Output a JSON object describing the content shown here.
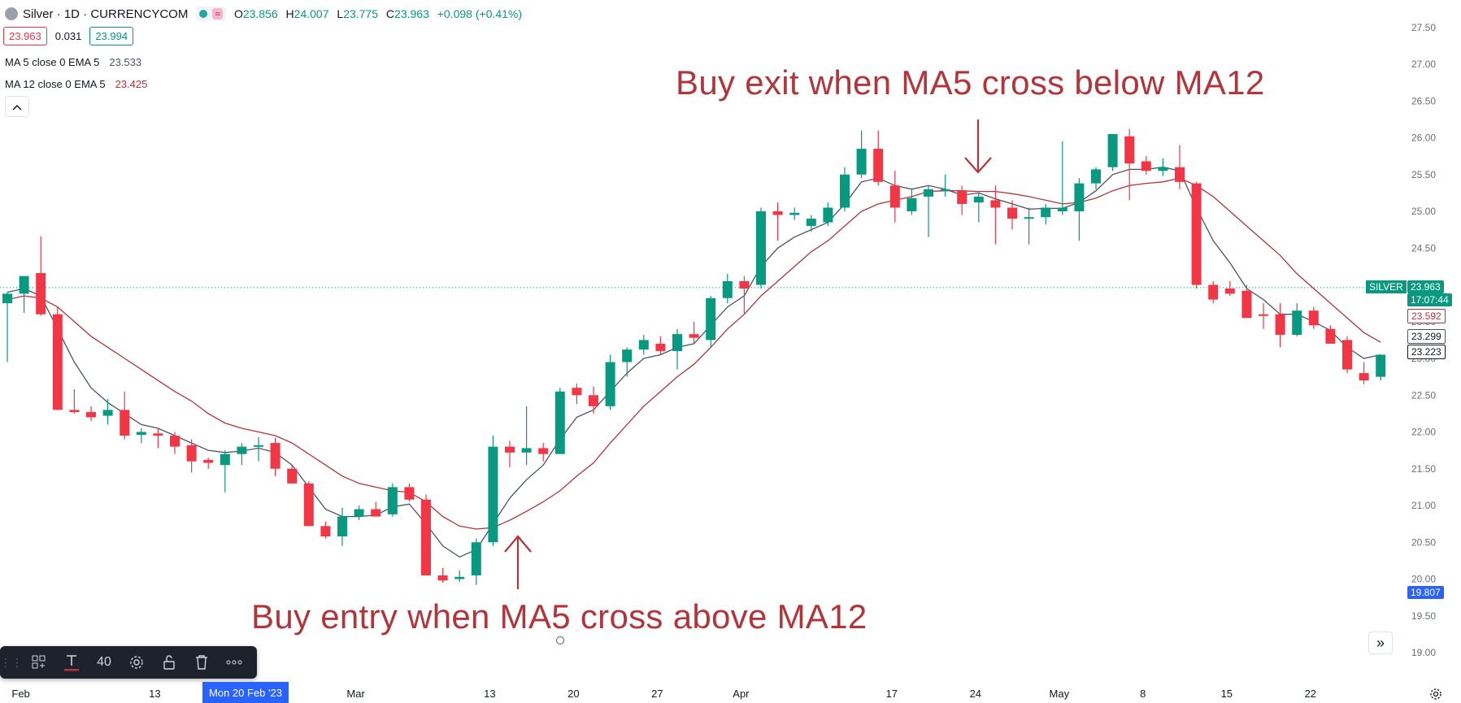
{
  "header": {
    "title": "Silver · 1D · CURRENCYCOM",
    "open_label": "O",
    "open": "23.856",
    "high_label": "H",
    "high": "24.007",
    "low_label": "L",
    "low": "23.775",
    "close_label": "C",
    "close": "23.963",
    "change": "+0.098 (+0.41%)"
  },
  "quote": {
    "sell": "23.963",
    "spread": "0.031",
    "buy": "23.994"
  },
  "indicators": {
    "ma5": {
      "label": "MA 5 close 0 EMA 5",
      "value": "23.533"
    },
    "ma12": {
      "label": "MA 12 close 0 EMA 5",
      "value": "23.425"
    }
  },
  "collapse_icon": "chevron-up-icon",
  "annotations": {
    "exit": "Buy exit when MA5 cross below MA12",
    "entry": "Buy entry when MA5 cross above MA12"
  },
  "price_axis_labels": {
    "symbol": "SILVER",
    "last_price": "23.963",
    "countdown": "17:07:44",
    "ma_a": "23.592",
    "ma_b": "23.299",
    "ma_c": "23.223",
    "marker": "19.807"
  },
  "toolbar": {
    "font_size": "40"
  },
  "highlighted_date": "Mon 20 Feb '23",
  "colors": {
    "up": "#089981",
    "down": "#f23645",
    "ma5": "#4a5466",
    "ma12": "#b2353c",
    "annotation": "#b2353c"
  },
  "chart_data": {
    "type": "candlestick",
    "title": "Silver · 1D · CURRENCYCOM",
    "ylim": [
      18.9,
      27.6
    ],
    "y_ticks": [
      "19.00",
      "19.50",
      "20.00",
      "20.50",
      "21.00",
      "21.50",
      "22.00",
      "22.50",
      "23.00",
      "23.50",
      "24.00",
      "24.50",
      "25.00",
      "25.50",
      "26.00",
      "26.50",
      "27.00",
      "27.50"
    ],
    "x_ticks": [
      {
        "i": 1,
        "label": "Feb"
      },
      {
        "i": 9,
        "label": "13"
      },
      {
        "i": 13,
        "label": "Mon 20 Feb '23"
      },
      {
        "i": 21,
        "label": "Mar"
      },
      {
        "i": 29,
        "label": "13"
      },
      {
        "i": 34,
        "label": "20"
      },
      {
        "i": 39,
        "label": "27"
      },
      {
        "i": 44,
        "label": "Apr"
      },
      {
        "i": 53,
        "label": "17"
      },
      {
        "i": 58,
        "label": "24"
      },
      {
        "i": 63,
        "label": "May"
      },
      {
        "i": 68,
        "label": "8"
      },
      {
        "i": 73,
        "label": "15"
      },
      {
        "i": 78,
        "label": "22"
      }
    ],
    "candles": [
      {
        "o": 23.75,
        "h": 23.9,
        "l": 22.95,
        "c": 23.88
      },
      {
        "o": 23.88,
        "h": 24.08,
        "l": 23.62,
        "c": 24.12
      },
      {
        "o": 24.16,
        "h": 24.66,
        "l": 23.58,
        "c": 23.6
      },
      {
        "o": 23.6,
        "h": 23.7,
        "l": 22.3,
        "c": 22.3
      },
      {
        "o": 22.3,
        "h": 22.58,
        "l": 22.25,
        "c": 22.27
      },
      {
        "o": 22.27,
        "h": 22.35,
        "l": 22.15,
        "c": 22.2
      },
      {
        "o": 22.22,
        "h": 22.45,
        "l": 22.1,
        "c": 22.3
      },
      {
        "o": 22.3,
        "h": 22.55,
        "l": 21.9,
        "c": 21.95
      },
      {
        "o": 21.96,
        "h": 22.05,
        "l": 21.85,
        "c": 22.0
      },
      {
        "o": 21.98,
        "h": 22.05,
        "l": 21.78,
        "c": 21.95
      },
      {
        "o": 21.95,
        "h": 22.0,
        "l": 21.7,
        "c": 21.8
      },
      {
        "o": 21.82,
        "h": 21.9,
        "l": 21.45,
        "c": 21.6
      },
      {
        "o": 21.62,
        "h": 21.65,
        "l": 21.5,
        "c": 21.58
      },
      {
        "o": 21.55,
        "h": 21.75,
        "l": 21.18,
        "c": 21.7
      },
      {
        "o": 21.7,
        "h": 21.85,
        "l": 21.55,
        "c": 21.8
      },
      {
        "o": 21.8,
        "h": 21.93,
        "l": 21.6,
        "c": 21.82
      },
      {
        "o": 21.85,
        "h": 21.92,
        "l": 21.4,
        "c": 21.5
      },
      {
        "o": 21.5,
        "h": 21.55,
        "l": 21.3,
        "c": 21.3
      },
      {
        "o": 21.3,
        "h": 21.33,
        "l": 20.72,
        "c": 20.72
      },
      {
        "o": 20.72,
        "h": 20.78,
        "l": 20.55,
        "c": 20.58
      },
      {
        "o": 20.58,
        "h": 20.97,
        "l": 20.45,
        "c": 20.85
      },
      {
        "o": 20.85,
        "h": 21.0,
        "l": 20.8,
        "c": 20.95
      },
      {
        "o": 20.95,
        "h": 21.05,
        "l": 20.9,
        "c": 20.85
      },
      {
        "o": 20.88,
        "h": 21.3,
        "l": 20.85,
        "c": 21.25
      },
      {
        "o": 21.25,
        "h": 21.3,
        "l": 21.05,
        "c": 21.08
      },
      {
        "o": 21.08,
        "h": 21.15,
        "l": 20.05,
        "c": 20.05
      },
      {
        "o": 20.05,
        "h": 20.15,
        "l": 19.95,
        "c": 19.98
      },
      {
        "o": 20.0,
        "h": 20.12,
        "l": 19.96,
        "c": 20.03
      },
      {
        "o": 20.05,
        "h": 20.55,
        "l": 19.92,
        "c": 20.5
      },
      {
        "o": 20.5,
        "h": 21.95,
        "l": 20.45,
        "c": 21.8
      },
      {
        "o": 21.8,
        "h": 21.88,
        "l": 21.52,
        "c": 21.72
      },
      {
        "o": 21.72,
        "h": 22.35,
        "l": 21.55,
        "c": 21.78
      },
      {
        "o": 21.78,
        "h": 21.85,
        "l": 21.6,
        "c": 21.7
      },
      {
        "o": 21.7,
        "h": 22.6,
        "l": 21.7,
        "c": 22.55
      },
      {
        "o": 22.6,
        "h": 22.66,
        "l": 22.38,
        "c": 22.5
      },
      {
        "o": 22.5,
        "h": 22.62,
        "l": 22.25,
        "c": 22.35
      },
      {
        "o": 22.35,
        "h": 23.05,
        "l": 22.3,
        "c": 22.95
      },
      {
        "o": 22.95,
        "h": 23.15,
        "l": 22.75,
        "c": 23.12
      },
      {
        "o": 23.12,
        "h": 23.32,
        "l": 23.05,
        "c": 23.25
      },
      {
        "o": 23.2,
        "h": 23.3,
        "l": 23.05,
        "c": 23.1
      },
      {
        "o": 23.1,
        "h": 23.4,
        "l": 22.85,
        "c": 23.33
      },
      {
        "o": 23.33,
        "h": 23.5,
        "l": 23.2,
        "c": 23.28
      },
      {
        "o": 23.25,
        "h": 23.85,
        "l": 23.15,
        "c": 23.82
      },
      {
        "o": 23.82,
        "h": 24.15,
        "l": 23.75,
        "c": 24.05
      },
      {
        "o": 24.05,
        "h": 24.12,
        "l": 23.6,
        "c": 23.95
      },
      {
        "o": 24.0,
        "h": 25.05,
        "l": 23.95,
        "c": 25.0
      },
      {
        "o": 25.0,
        "h": 25.12,
        "l": 24.6,
        "c": 24.95
      },
      {
        "o": 24.95,
        "h": 25.05,
        "l": 24.88,
        "c": 24.98
      },
      {
        "o": 24.8,
        "h": 24.95,
        "l": 24.72,
        "c": 24.9
      },
      {
        "o": 24.85,
        "h": 25.12,
        "l": 24.8,
        "c": 25.05
      },
      {
        "o": 25.05,
        "h": 25.6,
        "l": 25.0,
        "c": 25.5
      },
      {
        "o": 25.5,
        "h": 26.1,
        "l": 25.45,
        "c": 25.85
      },
      {
        "o": 25.85,
        "h": 26.1,
        "l": 25.35,
        "c": 25.4
      },
      {
        "o": 25.35,
        "h": 25.55,
        "l": 24.85,
        "c": 25.05
      },
      {
        "o": 25.0,
        "h": 25.3,
        "l": 24.95,
        "c": 25.18
      },
      {
        "o": 25.2,
        "h": 25.35,
        "l": 24.65,
        "c": 25.3
      },
      {
        "o": 25.28,
        "h": 25.5,
        "l": 25.2,
        "c": 25.3
      },
      {
        "o": 25.28,
        "h": 25.35,
        "l": 24.95,
        "c": 25.1
      },
      {
        "o": 25.12,
        "h": 25.25,
        "l": 24.85,
        "c": 25.2
      },
      {
        "o": 25.15,
        "h": 25.35,
        "l": 24.55,
        "c": 25.05
      },
      {
        "o": 25.05,
        "h": 25.15,
        "l": 24.75,
        "c": 24.9
      },
      {
        "o": 24.9,
        "h": 25.05,
        "l": 24.55,
        "c": 24.92
      },
      {
        "o": 24.92,
        "h": 25.1,
        "l": 24.82,
        "c": 25.05
      },
      {
        "o": 25.0,
        "h": 25.95,
        "l": 24.95,
        "c": 25.05
      },
      {
        "o": 25.0,
        "h": 25.45,
        "l": 24.6,
        "c": 25.38
      },
      {
        "o": 25.38,
        "h": 25.6,
        "l": 25.3,
        "c": 25.57
      },
      {
        "o": 25.6,
        "h": 26.05,
        "l": 25.55,
        "c": 26.05
      },
      {
        "o": 26.02,
        "h": 26.12,
        "l": 25.15,
        "c": 25.65
      },
      {
        "o": 25.68,
        "h": 25.75,
        "l": 25.5,
        "c": 25.55
      },
      {
        "o": 25.55,
        "h": 25.72,
        "l": 25.48,
        "c": 25.6
      },
      {
        "o": 25.6,
        "h": 25.9,
        "l": 25.3,
        "c": 25.4
      },
      {
        "o": 25.38,
        "h": 25.4,
        "l": 23.95,
        "c": 24.0
      },
      {
        "o": 24.0,
        "h": 24.05,
        "l": 23.75,
        "c": 23.8
      },
      {
        "o": 23.95,
        "h": 24.05,
        "l": 23.85,
        "c": 23.88
      },
      {
        "o": 23.92,
        "h": 24.0,
        "l": 23.55,
        "c": 23.55
      },
      {
        "o": 23.6,
        "h": 23.75,
        "l": 23.4,
        "c": 23.58
      },
      {
        "o": 23.6,
        "h": 23.75,
        "l": 23.15,
        "c": 23.32
      },
      {
        "o": 23.32,
        "h": 23.75,
        "l": 23.3,
        "c": 23.65
      },
      {
        "o": 23.65,
        "h": 23.7,
        "l": 23.4,
        "c": 23.45
      },
      {
        "o": 23.4,
        "h": 23.45,
        "l": 23.2,
        "c": 23.2
      },
      {
        "o": 23.25,
        "h": 23.3,
        "l": 22.8,
        "c": 22.85
      },
      {
        "o": 22.8,
        "h": 22.95,
        "l": 22.65,
        "c": 22.7
      },
      {
        "o": 22.75,
        "h": 23.05,
        "l": 22.7,
        "c": 23.05
      }
    ],
    "series": [
      {
        "name": "MA 5 close 0 EMA 5",
        "values": [
          23.9,
          23.95,
          23.85,
          23.4,
          22.95,
          22.6,
          22.4,
          22.25,
          22.1,
          22.05,
          21.95,
          21.85,
          21.75,
          21.72,
          21.74,
          21.78,
          21.72,
          21.55,
          21.25,
          20.95,
          20.85,
          20.85,
          20.87,
          20.98,
          21.02,
          20.75,
          20.45,
          20.3,
          20.4,
          20.75,
          21.1,
          21.35,
          21.55,
          21.9,
          22.2,
          22.3,
          22.55,
          22.8,
          23.0,
          23.05,
          23.15,
          23.2,
          23.45,
          23.7,
          23.85,
          24.25,
          24.5,
          24.65,
          24.75,
          24.85,
          25.1,
          25.4,
          25.45,
          25.35,
          25.3,
          25.35,
          25.3,
          25.22,
          25.25,
          25.17,
          25.1,
          25.03,
          25.04,
          25.04,
          25.12,
          25.28,
          25.5,
          25.57,
          25.57,
          25.6,
          25.55,
          25.05,
          24.6,
          24.3,
          23.95,
          23.8,
          23.6,
          23.6,
          23.5,
          23.38,
          23.15,
          23.0,
          23.05
        ]
      },
      {
        "name": "MA 12 close 0 EMA 5",
        "values": [
          23.8,
          23.85,
          23.82,
          23.7,
          23.5,
          23.3,
          23.15,
          23.0,
          22.85,
          22.7,
          22.55,
          22.42,
          22.25,
          22.12,
          22.05,
          22.0,
          21.95,
          21.85,
          21.7,
          21.55,
          21.4,
          21.3,
          21.25,
          21.2,
          21.18,
          21.05,
          20.85,
          20.72,
          20.68,
          20.7,
          20.8,
          20.92,
          21.05,
          21.2,
          21.4,
          21.58,
          21.85,
          22.1,
          22.35,
          22.55,
          22.75,
          22.92,
          23.15,
          23.4,
          23.6,
          23.85,
          24.05,
          24.25,
          24.45,
          24.6,
          24.8,
          25.0,
          25.1,
          25.15,
          25.2,
          25.27,
          25.28,
          25.28,
          25.27,
          25.27,
          25.24,
          25.2,
          25.15,
          25.1,
          25.12,
          25.18,
          25.28,
          25.35,
          25.38,
          25.4,
          25.45,
          25.35,
          25.2,
          25.0,
          24.8,
          24.6,
          24.4,
          24.15,
          23.95,
          23.75,
          23.55,
          23.35,
          23.22
        ]
      }
    ],
    "price_line": 23.963
  }
}
